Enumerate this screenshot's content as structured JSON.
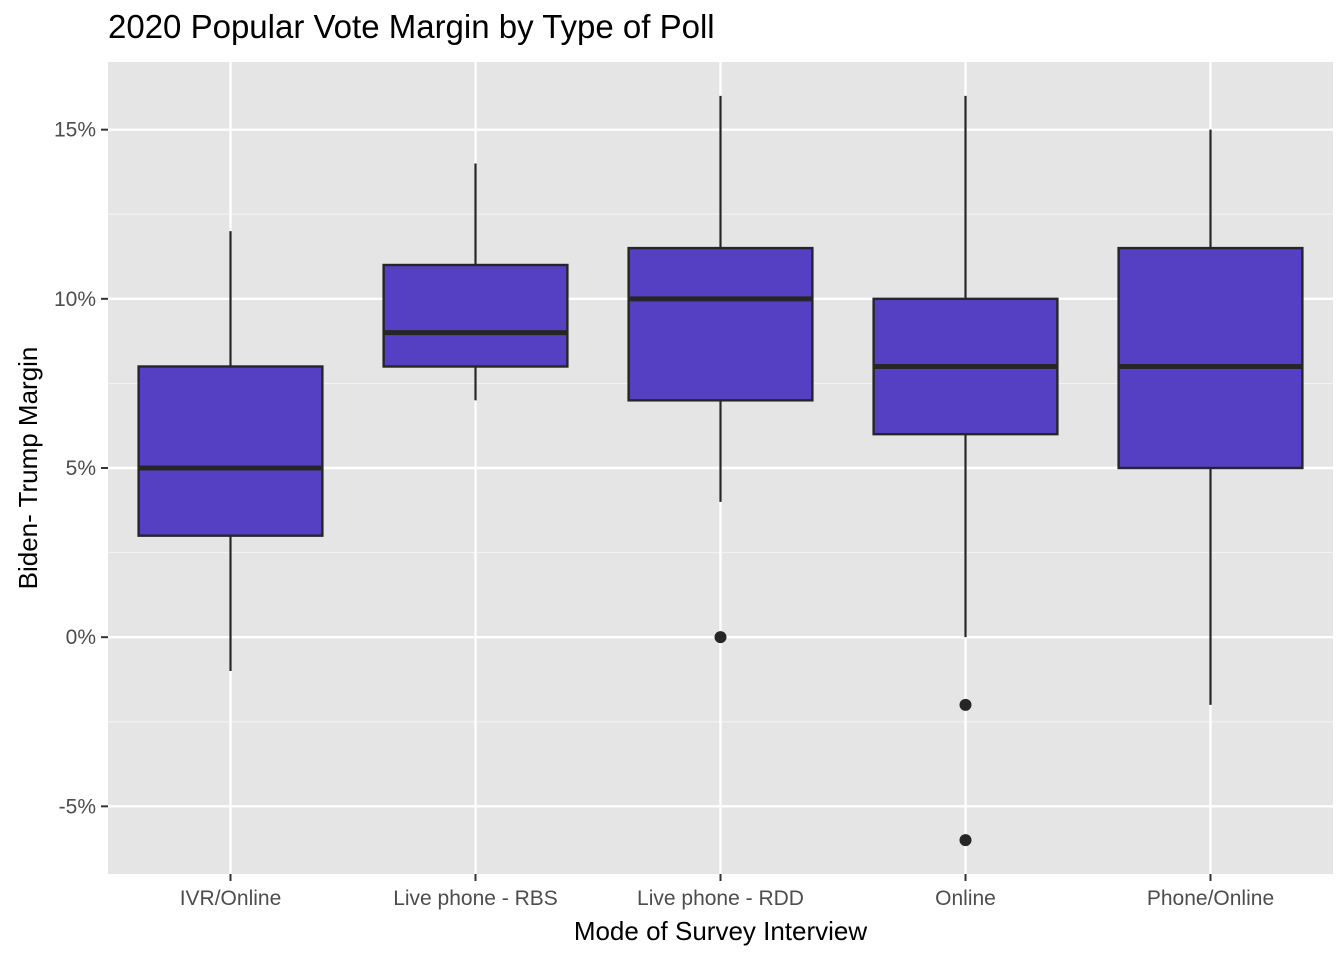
{
  "chart_data": {
    "type": "box",
    "title": "2020 Popular Vote Margin by Type of Poll",
    "xlabel": "Mode of Survey Interview",
    "ylabel": "Biden- Trump Margin",
    "ylim": [
      -7,
      17
    ],
    "y_ticks": [
      -5,
      0,
      5,
      10,
      15
    ],
    "y_tick_labels": [
      "-5%",
      "0%",
      "5%",
      "10%",
      "15%"
    ],
    "categories": [
      "IVR/Online",
      "Live phone - RBS",
      "Live phone - RDD",
      "Online",
      "Phone/Online"
    ],
    "boxes": [
      {
        "category": "IVR/Online",
        "whisker_low": -1,
        "q1": 3,
        "median": 5,
        "q3": 8,
        "whisker_high": 12,
        "outliers": []
      },
      {
        "category": "Live phone - RBS",
        "whisker_low": 7,
        "q1": 8,
        "median": 9,
        "q3": 11,
        "whisker_high": 14,
        "outliers": []
      },
      {
        "category": "Live phone - RDD",
        "whisker_low": 4,
        "q1": 7,
        "median": 10,
        "q3": 11.5,
        "whisker_high": 16,
        "outliers": [
          0
        ]
      },
      {
        "category": "Online",
        "whisker_low": 0,
        "q1": 6,
        "median": 8,
        "q3": 10,
        "whisker_high": 16,
        "outliers": [
          -2,
          -6
        ]
      },
      {
        "category": "Phone/Online",
        "whisker_low": -2,
        "q1": 5,
        "median": 8,
        "q3": 11.5,
        "whisker_high": 15,
        "outliers": []
      }
    ],
    "grid": true,
    "legend": "none",
    "colors": {
      "box_fill": "#5540c4",
      "box_line": "#262626",
      "panel_bg": "#e5e5e5",
      "grid_major": "#ffffff",
      "grid_minor": "#f2f2f2"
    }
  }
}
